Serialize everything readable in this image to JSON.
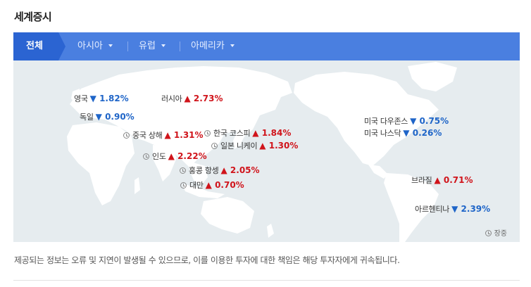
{
  "title": "세계증시",
  "tabs": [
    {
      "label": "전체",
      "active": true
    },
    {
      "label": "아시아"
    },
    {
      "label": "유럽"
    },
    {
      "label": "아메리카"
    }
  ],
  "colors": {
    "up": "#d0141b",
    "down": "#1f65c8",
    "tab_active": "#2b64d2",
    "tab_bar": "#4a7fe0",
    "map_bg": "#e6ecef",
    "land": "#ffffff"
  },
  "markets": [
    {
      "name": "영국",
      "dir": "down",
      "symbol": "▼",
      "change": "1.82%",
      "clock": false
    },
    {
      "name": "러시아",
      "dir": "up",
      "symbol": "▲",
      "change": "2.73%",
      "clock": false
    },
    {
      "name": "독일",
      "dir": "down",
      "symbol": "▼",
      "change": "0.90%",
      "clock": false
    },
    {
      "name": "중국 상해",
      "dir": "up",
      "symbol": "▲",
      "change": "1.31%",
      "clock": true
    },
    {
      "name": "한국 코스피",
      "dir": "up",
      "symbol": "▲",
      "change": "1.84%",
      "clock": true
    },
    {
      "name": "일본 니케이",
      "dir": "up",
      "symbol": "▲",
      "change": "1.30%",
      "clock": true
    },
    {
      "name": "인도",
      "dir": "up",
      "symbol": "▲",
      "change": "2.22%",
      "clock": true
    },
    {
      "name": "홍콩 항셍",
      "dir": "up",
      "symbol": "▲",
      "change": "2.05%",
      "clock": true
    },
    {
      "name": "대만",
      "dir": "up",
      "symbol": "▲",
      "change": "0.70%",
      "clock": true
    },
    {
      "name": "미국 다우존스",
      "dir": "down",
      "symbol": "▼",
      "change": "0.75%",
      "clock": false
    },
    {
      "name": "미국 나스닥",
      "dir": "down",
      "symbol": "▼",
      "change": "0.26%",
      "clock": false
    },
    {
      "name": "브라질",
      "dir": "up",
      "symbol": "▲",
      "change": "0.71%",
      "clock": false
    },
    {
      "name": "아르헨티나",
      "dir": "down",
      "symbol": "▼",
      "change": "2.39%",
      "clock": false
    }
  ],
  "legend": {
    "icon": "clock-icon",
    "text": "장중"
  },
  "notice": "제공되는 정보는 오류 및 지연이 발생될 수 있으므로, 이를 이용한 투자에 대한 책임은 해당 투자자에게 귀속됩니다."
}
